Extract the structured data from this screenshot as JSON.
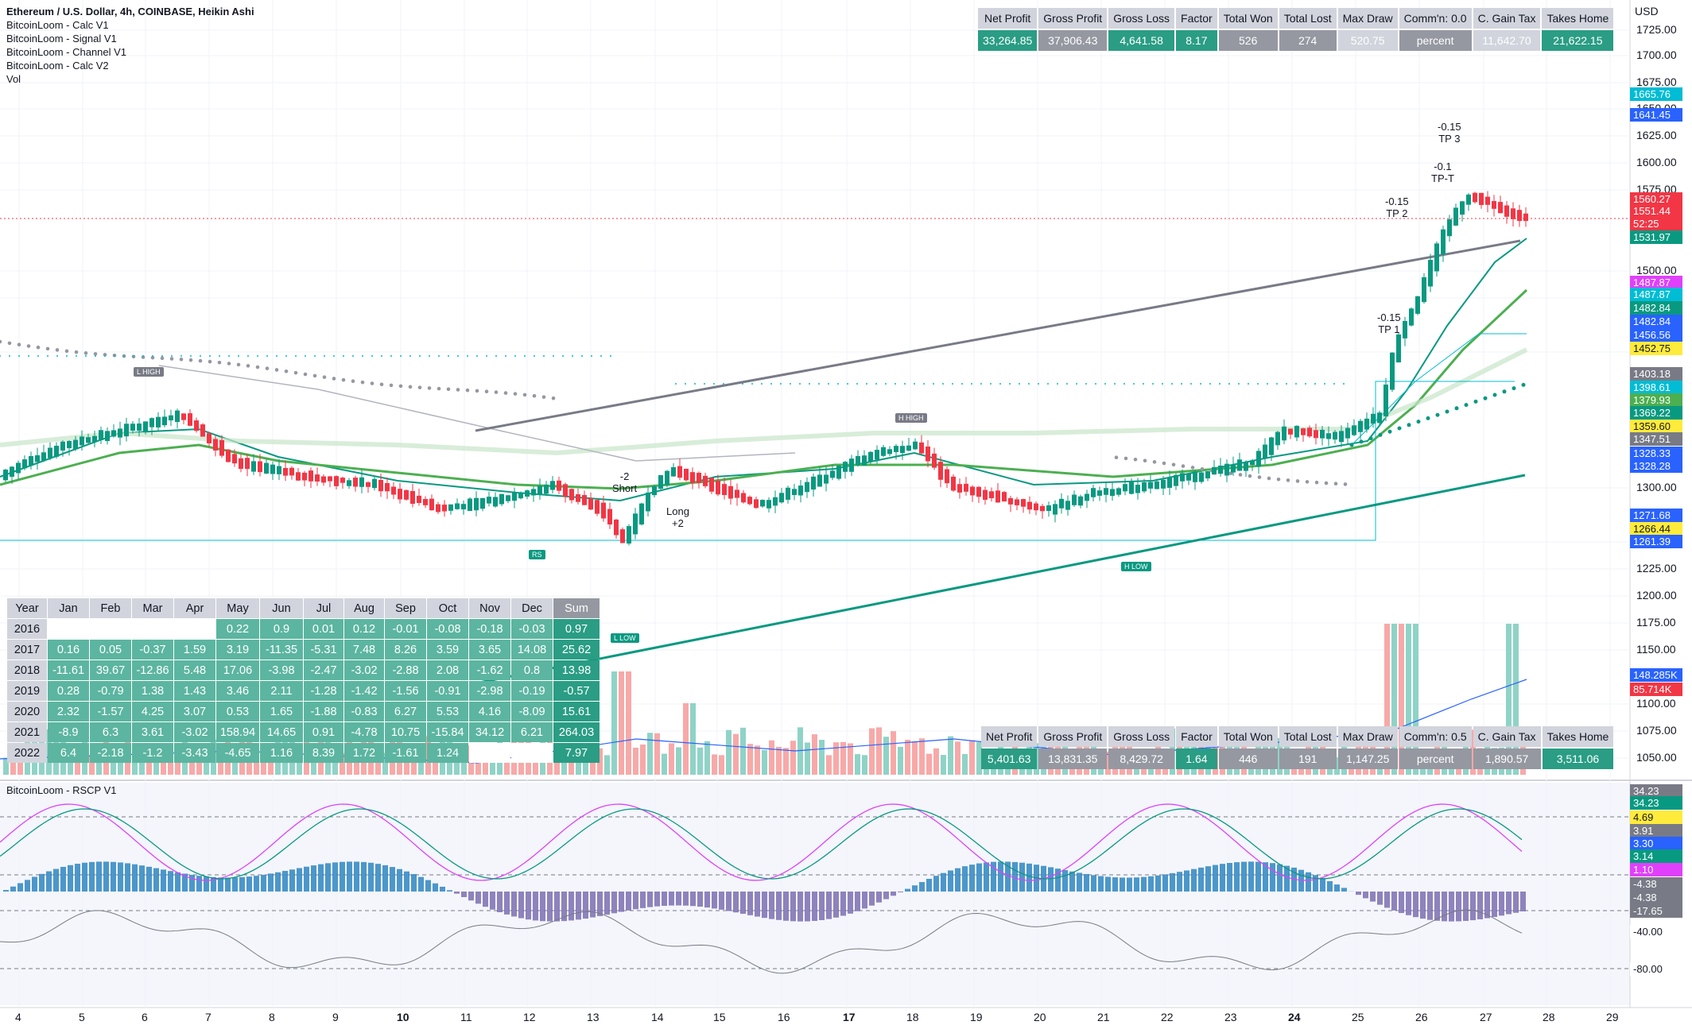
{
  "symbol_title": "Ethereum / U.S. Dollar, 4h, COINBASE, Heikin Ashi",
  "indicators": [
    "BitcoinLoom - Calc V1",
    "BitcoinLoom - Signal V1",
    "BitcoinLoom - Channel V1",
    "BitcoinLoom - Calc V2",
    "Vol"
  ],
  "currency": "USD",
  "stats_top": {
    "headers": [
      "Net Profit",
      "Gross Profit",
      "Gross Loss",
      "Factor",
      "Total Won",
      "Total Lost",
      "Max Draw",
      "Comm'n: 0.0",
      "C. Gain Tax",
      "Takes Home"
    ],
    "values": [
      "33,264.85",
      "37,906.43",
      "4,641.58",
      "8.17",
      "526",
      "274",
      "520.75",
      "percent",
      "11,642.70",
      "21,622.15"
    ]
  },
  "stats_bottom": {
    "headers": [
      "Net Profit",
      "Gross Profit",
      "Gross Loss",
      "Factor",
      "Total Won",
      "Total Lost",
      "Max Draw",
      "Comm'n: 0.5",
      "C. Gain Tax",
      "Takes Home"
    ],
    "values": [
      "5,401.63",
      "13,831.35",
      "8,429.72",
      "1.64",
      "446",
      "191",
      "1,147.25",
      "percent",
      "1,890.57",
      "3,511.06"
    ]
  },
  "monthly_table": {
    "headers": [
      "Year",
      "Jan",
      "Feb",
      "Mar",
      "Apr",
      "May",
      "Jun",
      "Jul",
      "Aug",
      "Sep",
      "Oct",
      "Nov",
      "Dec",
      "Sum"
    ],
    "rows": [
      [
        "2016",
        "",
        "",
        "",
        "",
        "0.22",
        "0.9",
        "0.01",
        "0.12",
        "-0.01",
        "-0.08",
        "-0.18",
        "-0.03",
        "0.97"
      ],
      [
        "2017",
        "0.16",
        "0.05",
        "-0.37",
        "1.59",
        "3.19",
        "-11.35",
        "-5.31",
        "7.48",
        "8.26",
        "3.59",
        "3.65",
        "14.08",
        "25.62"
      ],
      [
        "2018",
        "-11.61",
        "39.67",
        "-12.86",
        "5.48",
        "17.06",
        "-3.98",
        "-2.47",
        "-3.02",
        "-2.88",
        "2.08",
        "-1.62",
        "0.8",
        "13.98"
      ],
      [
        "2019",
        "0.28",
        "-0.79",
        "1.38",
        "1.43",
        "3.46",
        "2.11",
        "-1.28",
        "-1.42",
        "-1.56",
        "-0.91",
        "-2.98",
        "-0.19",
        "-0.57"
      ],
      [
        "2020",
        "2.32",
        "-1.57",
        "4.25",
        "3.07",
        "0.53",
        "1.65",
        "-1.88",
        "-0.83",
        "6.27",
        "5.53",
        "4.16",
        "-8.09",
        "15.61"
      ],
      [
        "2021",
        "-8.9",
        "6.3",
        "3.61",
        "-3.02",
        "158.94",
        "14.65",
        "0.91",
        "-4.78",
        "10.75",
        "-15.84",
        "34.12",
        "6.21",
        "264.03"
      ],
      [
        "2022",
        "6.4",
        "-2.18",
        "-1.2",
        "-3.43",
        "-4.65",
        "1.16",
        "8.39",
        "1.72",
        "-1.61",
        "1.24",
        "",
        "",
        "7.97"
      ]
    ]
  },
  "price_axis_labels": [
    "1725.00",
    "1700.00",
    "1675.00",
    "1650.00",
    "1625.00",
    "1600.00",
    "1575.00",
    "1500.00",
    "1475.00",
    "1425.00",
    "1300.00",
    "1250.00",
    "1225.00",
    "1200.00",
    "1175.00",
    "1150.00",
    "1100.00",
    "1075.00",
    "1050.00"
  ],
  "price_tags": [
    {
      "text": "1665.76",
      "color": "#00bcd4"
    },
    {
      "text": "1641.45",
      "color": "#2962ff"
    },
    {
      "text": "1560.27",
      "color": "#f23645"
    },
    {
      "text": "1551.44",
      "color": "#f23645"
    },
    {
      "text": "52:25",
      "color": "#f23645"
    },
    {
      "text": "1531.97",
      "color": "#089981"
    },
    {
      "text": "1487.87",
      "color": "#e040fb"
    },
    {
      "text": "1487.87",
      "color": "#00bcd4"
    },
    {
      "text": "1482.84",
      "color": "#089981"
    },
    {
      "text": "1482.84",
      "color": "#2962ff"
    },
    {
      "text": "1456.56",
      "color": "#2962ff"
    },
    {
      "text": "1452.75",
      "color": "#ffeb3b"
    },
    {
      "text": "1403.18",
      "color": "#787b86"
    },
    {
      "text": "1398.61",
      "color": "#00bcd4"
    },
    {
      "text": "1379.93",
      "color": "#4caf50"
    },
    {
      "text": "1369.22",
      "color": "#089981"
    },
    {
      "text": "1359.60",
      "color": "#ffeb3b"
    },
    {
      "text": "1347.51",
      "color": "#787b86"
    },
    {
      "text": "1328.33",
      "color": "#2962ff"
    },
    {
      "text": "1328.28",
      "color": "#2962ff"
    },
    {
      "text": "1271.68",
      "color": "#2962ff"
    },
    {
      "text": "1266.44",
      "color": "#ffeb3b"
    },
    {
      "text": "1261.39",
      "color": "#2962ff"
    },
    {
      "text": "148.285K",
      "color": "#2962ff"
    },
    {
      "text": "85.714K",
      "color": "#f23645"
    }
  ],
  "osc_tags": [
    {
      "text": "34.23",
      "color": "#787b86"
    },
    {
      "text": "34.23",
      "color": "#089981"
    },
    {
      "text": "4.69",
      "color": "#ffeb3b"
    },
    {
      "text": "3.91",
      "color": "#787b86"
    },
    {
      "text": "3.30",
      "color": "#2962ff"
    },
    {
      "text": "3.14",
      "color": "#089981"
    },
    {
      "text": "1.10",
      "color": "#e040fb"
    },
    {
      "text": "-4.38",
      "color": "#787b86"
    },
    {
      "text": "-4.38",
      "color": "#787b86"
    },
    {
      "text": "-17.65",
      "color": "#787b86"
    },
    {
      "text": "-40.00",
      "color": "#ffffff"
    },
    {
      "text": "-80.00",
      "color": "#ffffff"
    }
  ],
  "osc_title": "BitcoinLoom - RSCP V1",
  "time_labels": [
    "4",
    "5",
    "6",
    "7",
    "8",
    "9",
    "10",
    "11",
    "12",
    "13",
    "14",
    "15",
    "16",
    "17",
    "18",
    "19",
    "20",
    "21",
    "22",
    "23",
    "24",
    "25",
    "26",
    "27",
    "28",
    "29"
  ],
  "annotations": {
    "short": "-2\nShort",
    "long": "Long\n+2",
    "tp1": "-0.15\nTP 1",
    "tp2": "-0.15\nTP 2",
    "tp3": "-0.15\nTP 3",
    "tpt": "-0.1\nTP-T",
    "l_high": "L HIGH",
    "h_high": "H HIGH",
    "l_low": "L LOW",
    "h_low": "H LOW",
    "rs": "RS"
  },
  "colors": {
    "up": "#089981",
    "down": "#f23645",
    "accent": "#2962ff",
    "teal": "#00bcd4",
    "grey": "#787b86"
  }
}
